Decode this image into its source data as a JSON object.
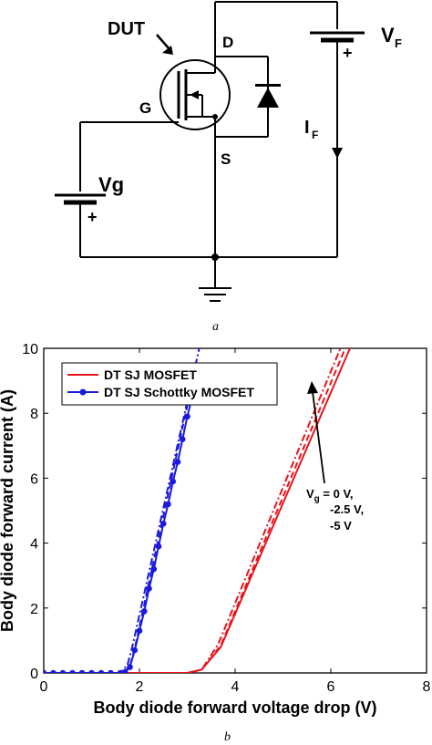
{
  "circuit": {
    "dut_label": "DUT",
    "drain_label": "D",
    "gate_label": "G",
    "source_label": "S",
    "vg_label": "Vg",
    "vg_polarity": "+",
    "vf_label_main": "V",
    "vf_label_sub": "F",
    "vf_polarity": "+",
    "if_label_main": "I",
    "if_label_sub": "F",
    "caption": "a"
  },
  "chart_caption": "b",
  "chart_data": {
    "type": "line",
    "xlabel": "Body diode forward voltage drop (V)",
    "ylabel": "Body diode forward current (A)",
    "xlim": [
      0,
      8
    ],
    "ylim": [
      0,
      10
    ],
    "x_ticks": [
      "0",
      "2",
      "4",
      "6",
      "8"
    ],
    "y_ticks": [
      "0",
      "2",
      "4",
      "6",
      "8",
      "10"
    ],
    "grid": false,
    "legend_position": "top-left",
    "legend": [
      "DT SJ MOSFET",
      "DT SJ Schottky MOSFET"
    ],
    "annotation": {
      "vg_prefix": "V",
      "vg_sub": "g",
      "line1_suffix": " = 0 V,",
      "line2": "-2.5 V,",
      "line3": "-5 V"
    },
    "colors": {
      "mosfet": "#e8141b",
      "schottky": "#1a1adc"
    },
    "series": [
      {
        "name": "DT SJ MOSFET",
        "group": "mosfet",
        "style": "solid",
        "x": [
          0,
          3.0,
          3.3,
          3.7,
          6.4
        ],
        "y": [
          0,
          0,
          0.1,
          0.8,
          10
        ]
      },
      {
        "name": "",
        "group": "mosfet",
        "style": "dash",
        "x": [
          0,
          3.0,
          3.3,
          3.7,
          6.3
        ],
        "y": [
          0,
          0,
          0.1,
          0.85,
          10
        ]
      },
      {
        "name": "",
        "group": "mosfet",
        "style": "dashdot",
        "x": [
          0,
          3.0,
          3.3,
          3.65,
          6.2
        ],
        "y": [
          0,
          0,
          0.1,
          0.9,
          10
        ]
      },
      {
        "name": "DT SJ Schottky MOSFET",
        "group": "schottky",
        "style": "solid-marker",
        "x": [
          0,
          0.2,
          0.4,
          0.6,
          0.8,
          1.0,
          1.2,
          1.4,
          1.6,
          1.7,
          1.8,
          1.9,
          2.0,
          2.1,
          2.2,
          2.3,
          2.4,
          2.5,
          2.6,
          2.7,
          2.8,
          2.9,
          3.0,
          3.1,
          3.2
        ],
        "y": [
          0,
          0,
          0,
          0,
          0,
          0,
          0,
          0,
          0,
          0.03,
          0.18,
          0.7,
          1.3,
          1.9,
          2.6,
          3.2,
          3.9,
          4.6,
          5.2,
          5.9,
          6.5,
          7.2,
          7.9,
          8.5,
          9.2
        ]
      },
      {
        "name": "",
        "group": "schottky",
        "style": "dash",
        "x": [
          0,
          1.65,
          1.8,
          1.9,
          3.2
        ],
        "y": [
          0,
          0,
          0.2,
          0.75,
          9.6
        ]
      },
      {
        "name": "",
        "group": "schottky",
        "style": "dashdot",
        "x": [
          0,
          1.6,
          1.75,
          1.85,
          3.25
        ],
        "y": [
          0,
          0,
          0.25,
          0.8,
          10
        ]
      }
    ]
  }
}
